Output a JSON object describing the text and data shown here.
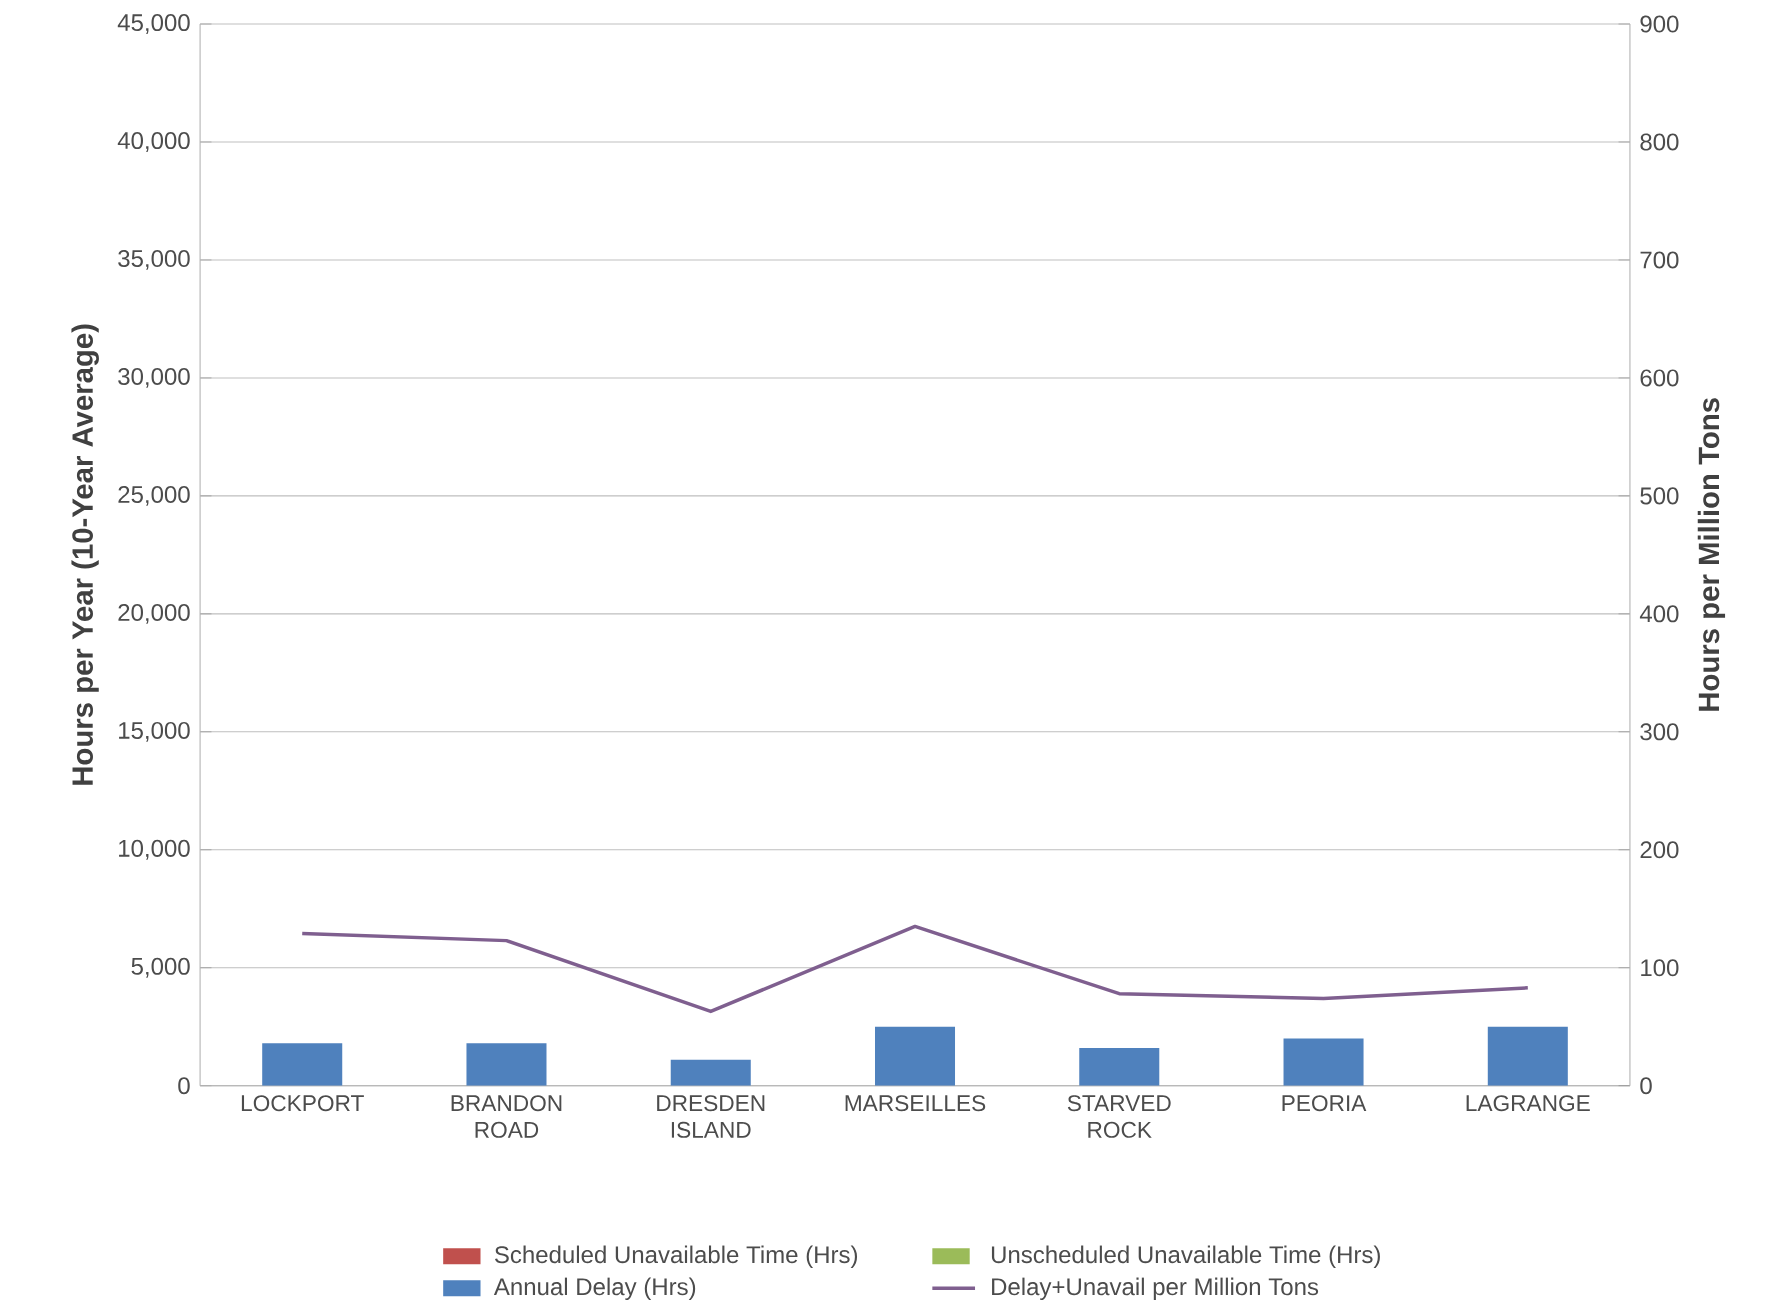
{
  "chart_data": {
    "type": "bar",
    "stacked": true,
    "ylabel": "Hours per Year (10-Year Average)",
    "y2label": "Hours per Million Tons",
    "categories": [
      "LOCKPORT",
      "BRANDON ROAD",
      "DRESDEN ISLAND",
      "MARSEILLES",
      "STARVED ROCK",
      "PEORIA",
      "LAGRANGE"
    ],
    "series": [
      {
        "name": "Scheduled Unavailable Time (Hrs)",
        "color": "#c0504d",
        "values": [
          0,
          0,
          0,
          0,
          0,
          0,
          0
        ]
      },
      {
        "name": "Unscheduled Unavailable Time (Hrs)",
        "color": "#9bbb59",
        "values": [
          0,
          0,
          0,
          0,
          0,
          0,
          0
        ]
      },
      {
        "name": "Annual Delay (Hrs)",
        "color": "#4f81bd",
        "values": [
          1800,
          1800,
          1100,
          2500,
          1600,
          2000,
          2500
        ]
      },
      {
        "name": "Delay+Unavail per Million Tons",
        "type": "line",
        "axis": "y2",
        "color": "#7f5f8f",
        "marker": "none",
        "values": [
          129,
          123,
          63,
          135,
          78,
          74,
          83
        ]
      }
    ],
    "ylim": [
      0,
      45000
    ],
    "yticks": [
      0,
      {
        "value": 5000,
        "label": "5,000"
      },
      {
        "value": 10000,
        "label": "10,000"
      },
      {
        "value": 15000,
        "label": "15,000"
      },
      {
        "value": 20000,
        "label": "20,000"
      },
      {
        "value": 25000,
        "label": "25,000"
      },
      {
        "value": 30000,
        "label": "30,000"
      },
      {
        "value": 35000,
        "label": "35,000"
      },
      {
        "value": 40000,
        "label": "40,000"
      },
      {
        "value": 45000,
        "label": "45,000"
      }
    ],
    "y2lim": [
      0,
      900
    ],
    "y2ticks": [
      0,
      100,
      200,
      300,
      400,
      500,
      600,
      700,
      800,
      900
    ],
    "grid": "y",
    "legend": "bottom"
  }
}
